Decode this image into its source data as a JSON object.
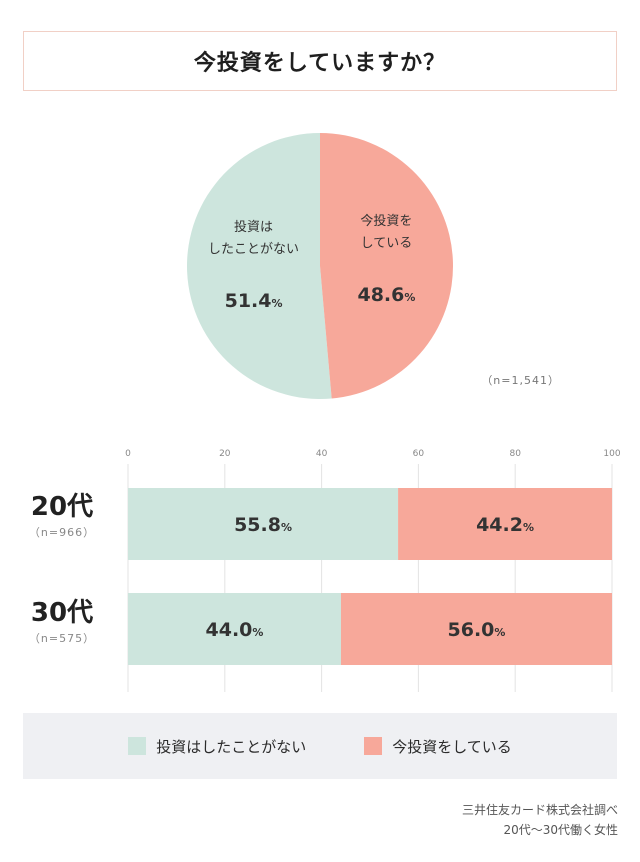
{
  "title": "今投資をしていますか？",
  "colors": {
    "not_invested": "#cde5dd",
    "invested": "#f7a89a",
    "grid": "#e3e3e3",
    "axis_text": "#888888"
  },
  "chart_data": [
    {
      "type": "pie",
      "slices": [
        {
          "label_lines": [
            "投資は",
            "したことがない"
          ],
          "value": 51.4,
          "value_text": "51.4",
          "unit": "%"
        },
        {
          "label_lines": [
            "今投資を",
            "している"
          ],
          "value": 48.6,
          "value_text": "48.6",
          "unit": "%"
        }
      ],
      "n_text": "（n=1,541）"
    },
    {
      "type": "bar",
      "stacked": true,
      "orientation": "horizontal",
      "xlim": [
        0,
        100
      ],
      "x_ticks": [
        "0",
        "20",
        "40",
        "60",
        "80",
        "100"
      ],
      "categories": [
        {
          "label": "20代",
          "n_text": "（n=966）"
        },
        {
          "label": "30代",
          "n_text": "（n=575）"
        }
      ],
      "series": [
        {
          "name": "投資はしたことがない",
          "values": [
            55.8,
            44.0
          ],
          "value_texts": [
            "55.8",
            "44.0"
          ]
        },
        {
          "name": "今投資をしている",
          "values": [
            44.2,
            56.0
          ],
          "value_texts": [
            "44.2",
            "56.0"
          ]
        }
      ],
      "unit": "%"
    }
  ],
  "legend": {
    "items": [
      {
        "label": "投資はしたことがない"
      },
      {
        "label": "今投資をしている"
      }
    ]
  },
  "source": {
    "line1": "三井住友カード株式会社調べ",
    "line2": "20代〜30代働く女性"
  }
}
